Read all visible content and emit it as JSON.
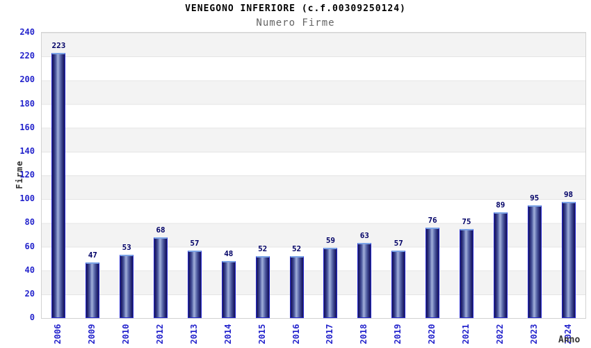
{
  "chart_data": {
    "type": "bar",
    "title": "VENEGONO INFERIORE (c.f.00309250124)",
    "subtitle": "Numero Firme",
    "xlabel": "Anno",
    "ylabel": "Firme",
    "categories": [
      "2006",
      "2009",
      "2010",
      "2012",
      "2013",
      "2014",
      "2015",
      "2016",
      "2017",
      "2018",
      "2019",
      "2020",
      "2021",
      "2022",
      "2023",
      "2024"
    ],
    "values": [
      223,
      47,
      53,
      68,
      57,
      48,
      52,
      52,
      59,
      63,
      57,
      76,
      75,
      89,
      95,
      98
    ],
    "ylim": [
      0,
      240
    ],
    "yticks": [
      0,
      20,
      40,
      60,
      80,
      100,
      120,
      140,
      160,
      180,
      200,
      220,
      240
    ],
    "grid": "horizontal-bands-alternating",
    "legend": "none",
    "colors": {
      "axis_tick_label": "#2424cc",
      "bar_value_label": "#000066",
      "bar_outline": "#2629cf",
      "bar_dark": "#17175c",
      "bar_highlight": "#a2aed8",
      "bar_top_cap": "#7ba3e6",
      "band_gray": "#f3f3f3",
      "band_white": "#ffffff",
      "gridline": "#e4e4e4",
      "subtitle_gray": "#646464"
    }
  }
}
